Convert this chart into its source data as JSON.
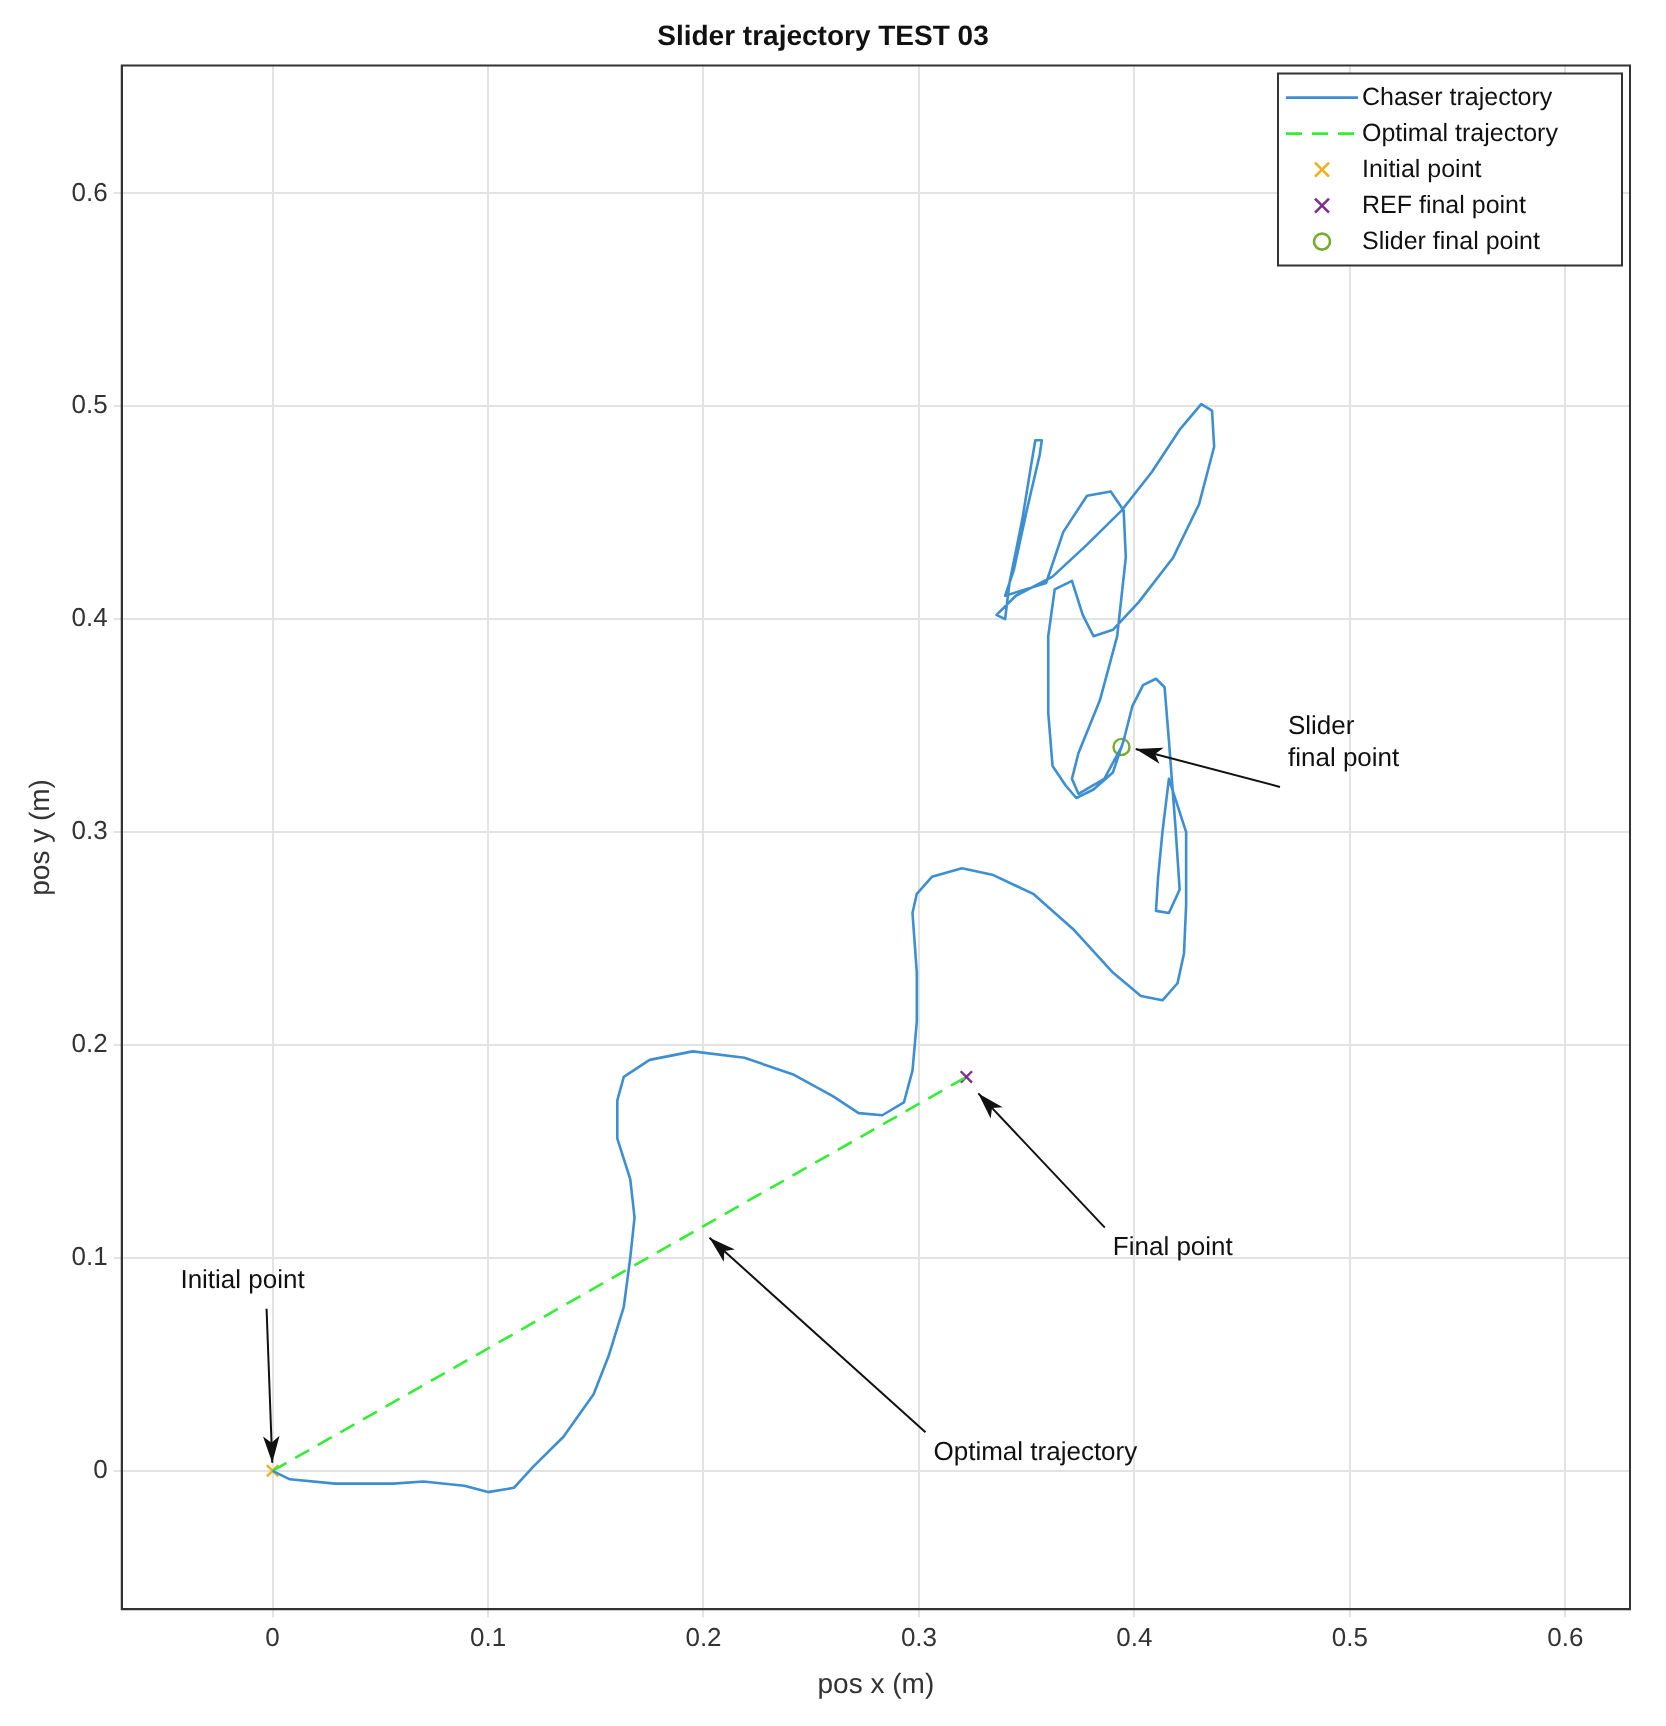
{
  "chart_data": {
    "type": "line",
    "title": "Slider trajectory TEST 03",
    "xlabel": "pos x (m)",
    "ylabel": "pos y (m)",
    "xlim": [
      -0.07,
      0.63
    ],
    "ylim": [
      -0.065,
      0.66
    ],
    "xticks": [
      0,
      0.1,
      0.2,
      0.3,
      0.4,
      0.5,
      0.6
    ],
    "yticks": [
      0,
      0.1,
      0.2,
      0.3,
      0.4,
      0.5,
      0.6
    ],
    "grid": true,
    "legend": "top right",
    "series": [
      {
        "name": "Chaser trajectory",
        "type": "line",
        "color": "#3d8fd1",
        "marker": "none",
        "line_style": "solid",
        "x": [
          0,
          0.008,
          0.029,
          0.056,
          0.07,
          0.089,
          0.1,
          0.112,
          0.121,
          0.135,
          0.149,
          0.156,
          0.163,
          0.166,
          0.168,
          0.166,
          0.16,
          0.16,
          0.163,
          0.175,
          0.195,
          0.219,
          0.242,
          0.26,
          0.272,
          0.283,
          0.293,
          0.297,
          0.299,
          0.299,
          0.297,
          0.299,
          0.306,
          0.32,
          0.334,
          0.353,
          0.372,
          0.39,
          0.403,
          0.413,
          0.42,
          0.423,
          0.424,
          0.424,
          0.416,
          0.413,
          0.411,
          0.41,
          0.416,
          0.421,
          0.419,
          0.416,
          0.414,
          0.41,
          0.404,
          0.399,
          0.395,
          0.39,
          0.381,
          0.373,
          0.368,
          0.362,
          0.36,
          0.36,
          0.363,
          0.371,
          0.376,
          0.381,
          0.39,
          0.402,
          0.418,
          0.43,
          0.437,
          0.436,
          0.431,
          0.421,
          0.408,
          0.394,
          0.378,
          0.362,
          0.345,
          0.336,
          0.34,
          0.342,
          0.348,
          0.352,
          0.354,
          0.357,
          0.356,
          0.35,
          0.344,
          0.34,
          0.359,
          0.367,
          0.378,
          0.389,
          0.395,
          0.396,
          0.392,
          0.384,
          0.374,
          0.371,
          0.374,
          0.386,
          0.394
        ],
        "values": [
          0,
          -0.004,
          -0.006,
          -0.006,
          -0.005,
          -0.007,
          -0.01,
          -0.008,
          0.002,
          0.016,
          0.036,
          0.054,
          0.077,
          0.1,
          0.119,
          0.137,
          0.156,
          0.174,
          0.185,
          0.193,
          0.197,
          0.194,
          0.186,
          0.176,
          0.168,
          0.167,
          0.173,
          0.188,
          0.211,
          0.234,
          0.262,
          0.271,
          0.279,
          0.283,
          0.28,
          0.271,
          0.254,
          0.234,
          0.223,
          0.221,
          0.229,
          0.243,
          0.266,
          0.3,
          0.325,
          0.3,
          0.279,
          0.263,
          0.262,
          0.273,
          0.303,
          0.343,
          0.368,
          0.372,
          0.369,
          0.359,
          0.343,
          0.328,
          0.32,
          0.316,
          0.322,
          0.331,
          0.356,
          0.392,
          0.414,
          0.418,
          0.402,
          0.392,
          0.395,
          0.408,
          0.429,
          0.454,
          0.481,
          0.498,
          0.501,
          0.489,
          0.469,
          0.451,
          0.435,
          0.42,
          0.411,
          0.402,
          0.4,
          0.417,
          0.447,
          0.472,
          0.484,
          0.484,
          0.477,
          0.451,
          0.423,
          0.411,
          0.417,
          0.441,
          0.458,
          0.46,
          0.451,
          0.429,
          0.392,
          0.362,
          0.337,
          0.325,
          0.318,
          0.325,
          0.34
        ]
      },
      {
        "name": "Optimal trajectory",
        "type": "line",
        "color": "#33ee33",
        "marker": "none",
        "line_style": "dashed",
        "x": [
          0,
          0.322
        ],
        "values": [
          0,
          0.185
        ]
      },
      {
        "name": "Initial point",
        "type": "scatter",
        "color": "#edb120",
        "marker": "cross",
        "x": [
          0
        ],
        "values": [
          0
        ]
      },
      {
        "name": "REF final point",
        "type": "scatter",
        "color": "#7e2f8e",
        "marker": "cross",
        "x": [
          0.322
        ],
        "values": [
          0.185
        ]
      },
      {
        "name": "Slider final point",
        "type": "scatter",
        "color": "#77ac30",
        "marker": "circle",
        "x": [
          0.394
        ],
        "values": [
          0.34
        ]
      }
    ],
    "annotations": [
      {
        "text": "Initial point",
        "x": 0,
        "y": 0
      },
      {
        "text": "Optimal trajectory",
        "x": 0.2,
        "y": 0.112
      },
      {
        "text": "Final point",
        "x": 0.325,
        "y": 0.18
      },
      {
        "text": "Slider\nfinal point",
        "x": 0.397,
        "y": 0.34
      }
    ]
  }
}
